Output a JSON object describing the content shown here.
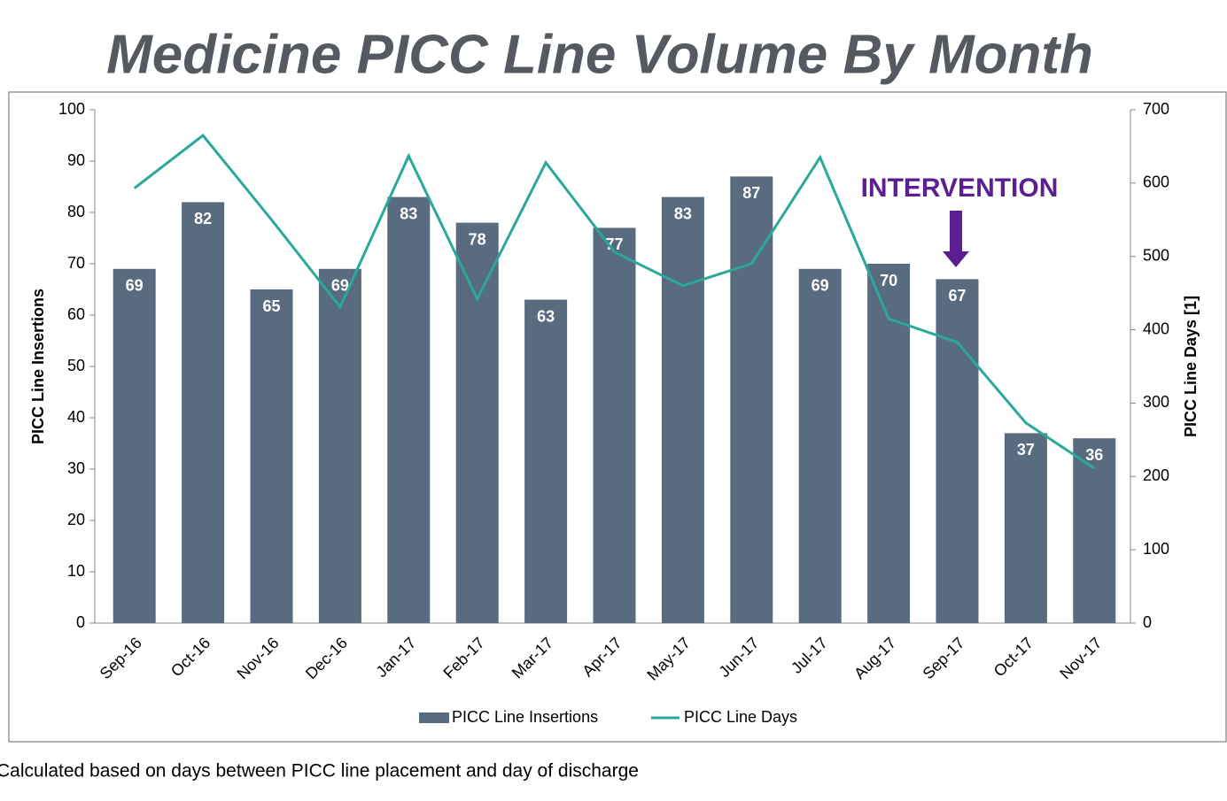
{
  "chart_data": {
    "type": "bar-line",
    "title": "Medicine PICC Line Volume By Month",
    "y_label": "PICC Line Insertions",
    "y2_label": "PICC Line Days [1]",
    "annotation": "INTERVENTION",
    "footnote": "Calculated based on days between PICC line placement and day of discharge",
    "categories": [
      "Sep-16",
      "Oct-16",
      "Nov-16",
      "Dec-16",
      "Jan-17",
      "Feb-17",
      "Mar-17",
      "Apr-17",
      "May-17",
      "Jun-17",
      "Jul-17",
      "Aug-17",
      "Sep-17",
      "Oct-17",
      "Nov-17"
    ],
    "series": [
      {
        "name": "PICC Line Insertions",
        "type": "bar",
        "color": "#596b7f",
        "values": [
          69,
          82,
          65,
          69,
          83,
          78,
          63,
          77,
          83,
          87,
          69,
          70,
          67,
          37,
          36
        ]
      },
      {
        "name": "PICC Line Days",
        "type": "line",
        "axis": "y2",
        "color": "#2aa89a",
        "values": [
          593,
          665,
          550,
          431,
          637,
          442,
          628,
          506,
          460,
          490,
          635,
          415,
          383,
          273,
          211
        ]
      }
    ],
    "ylim": [
      0,
      100
    ],
    "yticks": [
      0,
      10,
      20,
      30,
      40,
      50,
      60,
      70,
      80,
      90,
      100
    ],
    "y2lim": [
      0,
      700
    ],
    "y2ticks": [
      0,
      100,
      200,
      300,
      400,
      500,
      600,
      700
    ],
    "legend": "bottom"
  }
}
